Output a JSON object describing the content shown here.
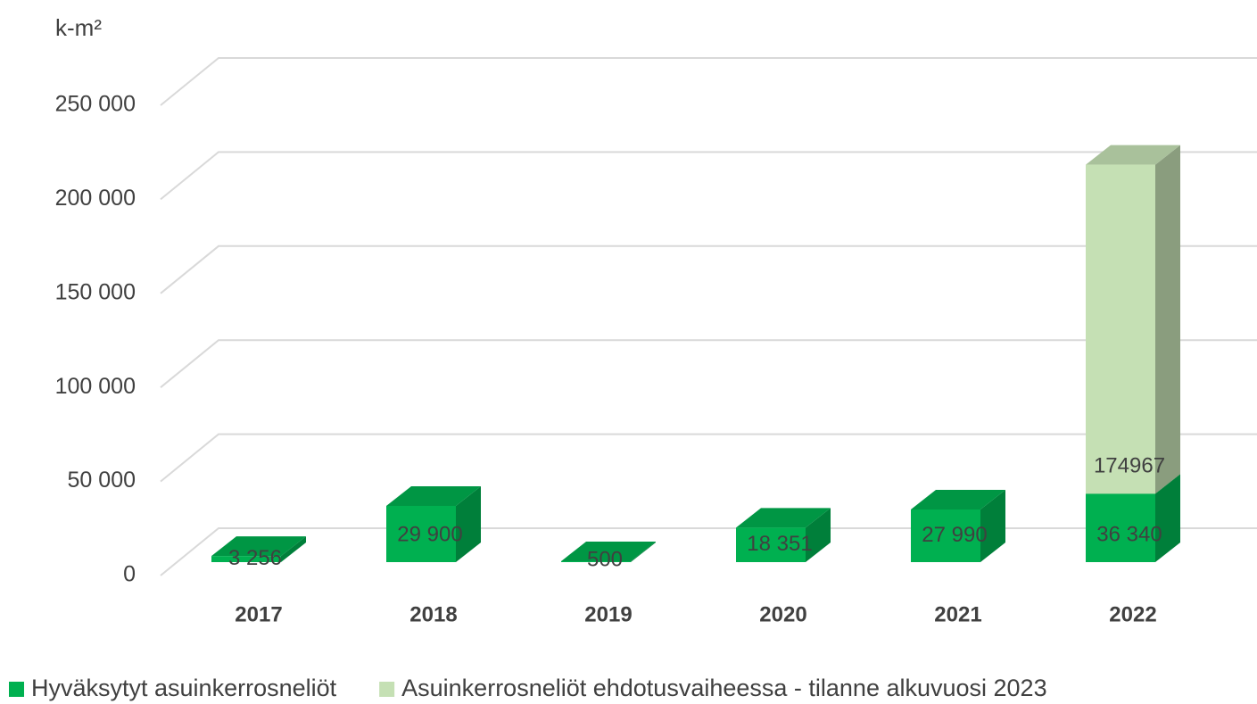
{
  "chart_data": {
    "type": "bar3d_stacked",
    "y_label": "k-m²",
    "categories": [
      "2017",
      "2018",
      "2019",
      "2020",
      "2021",
      "2022"
    ],
    "series": [
      {
        "name": "Hyväksytyt asuinkerrosneliöt",
        "color": "#00b050",
        "values": [
          3256,
          29900,
          500,
          18351,
          27990,
          36340
        ],
        "value_labels": [
          "3 256",
          "29 900",
          "500",
          "18 351",
          "27 990",
          "36 340"
        ]
      },
      {
        "name": "Asuinkerrosneliöt ehdotusvaiheessa - tilanne alkuvuosi 2023",
        "color": "#c5e0b4",
        "values": [
          null,
          null,
          null,
          null,
          null,
          174967
        ],
        "value_labels": [
          null,
          null,
          null,
          null,
          null,
          "174967"
        ]
      }
    ],
    "ylim": [
      0,
      250000
    ],
    "yticks": [
      0,
      {
        "value": 50000,
        "label": "50 000"
      },
      {
        "value": 100000,
        "label": "100 000"
      },
      {
        "value": 150000,
        "label": "150 000"
      },
      {
        "value": 200000,
        "label": "200 000"
      },
      {
        "value": 250000,
        "label": "250 000"
      }
    ],
    "grid": true,
    "legend": "bottom"
  }
}
